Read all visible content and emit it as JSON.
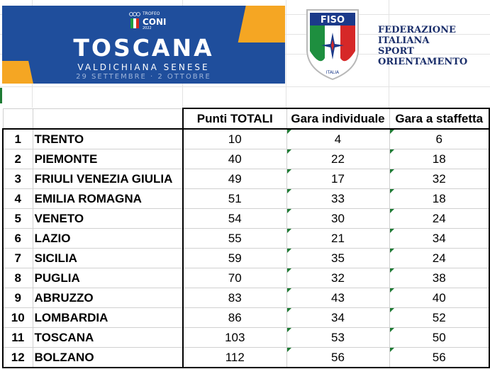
{
  "banner": {
    "title": "TOSCANA",
    "subtitle": "VALDICHIANA SENESE",
    "dates": "29 SETTEMBRE · 2 OTTOBRE",
    "coni_label": "TROFEO",
    "coni_name": "CONI",
    "coni_year": "2022",
    "colors": {
      "blue": "#1f4e9c",
      "orange": "#f5a623"
    }
  },
  "fiso": {
    "logo_text": "FISO",
    "shield_caption": "ITALIA",
    "federation_lines": [
      "FEDERAZIONE",
      "ITALIANA",
      "SPORT",
      "ORIENTAMENTO"
    ]
  },
  "table": {
    "headers": [
      "Punti TOTALI",
      "Gara individuale",
      "Gara a staffetta"
    ],
    "rows": [
      {
        "rank": "1",
        "region": "TRENTO",
        "total": "10",
        "individual": "4",
        "relay": "6"
      },
      {
        "rank": "2",
        "region": "PIEMONTE",
        "total": "40",
        "individual": "22",
        "relay": "18"
      },
      {
        "rank": "3",
        "region": "FRIULI VENEZIA GIULIA",
        "total": "49",
        "individual": "17",
        "relay": "32"
      },
      {
        "rank": "4",
        "region": "EMILIA ROMAGNA",
        "total": "51",
        "individual": "33",
        "relay": "18"
      },
      {
        "rank": "5",
        "region": "VENETO",
        "total": "54",
        "individual": "30",
        "relay": "24"
      },
      {
        "rank": "6",
        "region": "LAZIO",
        "total": "55",
        "individual": "21",
        "relay": "34"
      },
      {
        "rank": "7",
        "region": "SICILIA",
        "total": "59",
        "individual": "35",
        "relay": "24"
      },
      {
        "rank": "8",
        "region": "PUGLIA",
        "total": "70",
        "individual": "32",
        "relay": "38"
      },
      {
        "rank": "9",
        "region": "ABRUZZO",
        "total": "83",
        "individual": "43",
        "relay": "40"
      },
      {
        "rank": "10",
        "region": "LOMBARDIA",
        "total": "86",
        "individual": "34",
        "relay": "52"
      },
      {
        "rank": "11",
        "region": "TOSCANA",
        "total": "103",
        "individual": "53",
        "relay": "50"
      },
      {
        "rank": "12",
        "region": "BOLZANO",
        "total": "112",
        "individual": "56",
        "relay": "56"
      }
    ]
  }
}
